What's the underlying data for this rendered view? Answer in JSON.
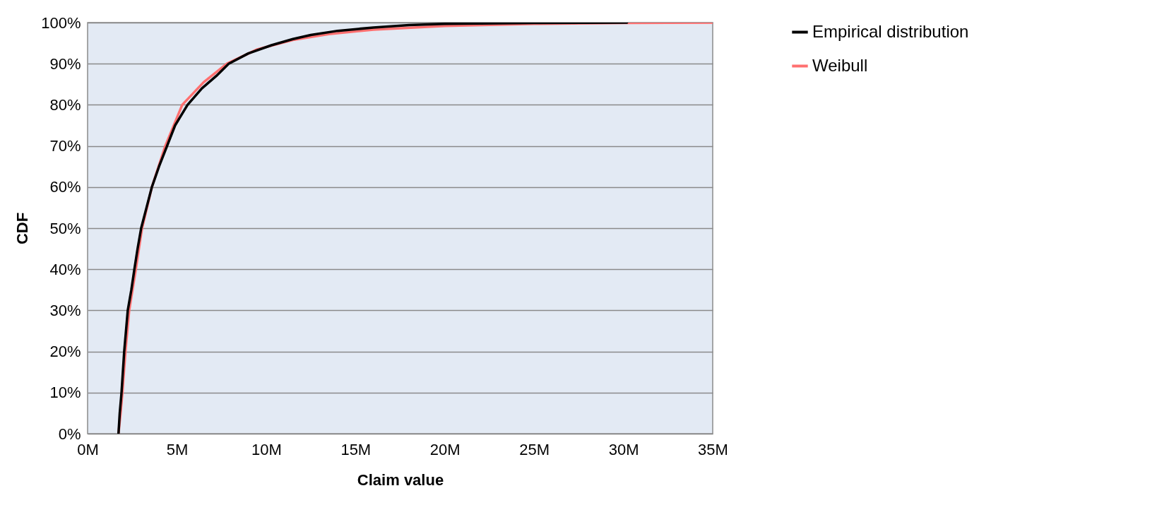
{
  "chart_data": {
    "type": "line",
    "xlabel": "Claim value",
    "ylabel": "CDF",
    "legend": "right",
    "grid": "y",
    "marker": "none",
    "line_style": "solid",
    "xlim": [
      0,
      35
    ],
    "xticks": [
      {
        "value": 0,
        "label": "0M"
      },
      {
        "value": 5,
        "label": "5M"
      },
      {
        "value": 10,
        "label": "10M"
      },
      {
        "value": 15,
        "label": "15M"
      },
      {
        "value": 20,
        "label": "20M"
      },
      {
        "value": 25,
        "label": "25M"
      },
      {
        "value": 30,
        "label": "30M"
      },
      {
        "value": 35,
        "label": "35M"
      }
    ],
    "ylim": [
      0,
      100
    ],
    "yticks": [
      {
        "value": 0,
        "label": "0%"
      },
      {
        "value": 10,
        "label": "10%"
      },
      {
        "value": 20,
        "label": "20%"
      },
      {
        "value": 30,
        "label": "30%"
      },
      {
        "value": 40,
        "label": "40%"
      },
      {
        "value": 50,
        "label": "50%"
      },
      {
        "value": 60,
        "label": "60%"
      },
      {
        "value": 70,
        "label": "70%"
      },
      {
        "value": 80,
        "label": "80%"
      },
      {
        "value": 90,
        "label": "90%"
      },
      {
        "value": 100,
        "label": "100%"
      }
    ],
    "series": [
      {
        "name": "Empirical distribution",
        "color": "#000000",
        "x": [
          1.73,
          1.8,
          1.9,
          2.05,
          2.25,
          2.45,
          2.62,
          2.8,
          3.0,
          3.3,
          3.6,
          4.0,
          4.45,
          4.9,
          5.6,
          6.4,
          7.2,
          7.9,
          9.0,
          10.3,
          11.5,
          12.5,
          14,
          16,
          18,
          20,
          25,
          30.2
        ],
        "values": [
          0,
          5,
          10,
          20,
          30,
          35,
          40,
          45,
          50,
          55,
          60,
          65,
          70,
          75,
          80,
          84,
          87,
          90,
          92.5,
          94.5,
          96,
          97,
          98,
          98.8,
          99.4,
          99.7,
          99.9,
          100
        ]
      },
      {
        "name": "Weibull",
        "color": "#ff7070",
        "x": [
          1.73,
          1.85,
          1.95,
          2.12,
          2.33,
          2.7,
          3.05,
          3.6,
          4.35,
          5.3,
          6.5,
          7.8,
          9.5,
          11.5,
          13.5,
          16,
          20,
          25,
          30,
          35
        ],
        "values": [
          0,
          5,
          10,
          20,
          30,
          40,
          50,
          60,
          70,
          80,
          85.5,
          90,
          93.5,
          95.8,
          97.2,
          98.3,
          99.2,
          99.7,
          99.9,
          100
        ]
      }
    ]
  }
}
